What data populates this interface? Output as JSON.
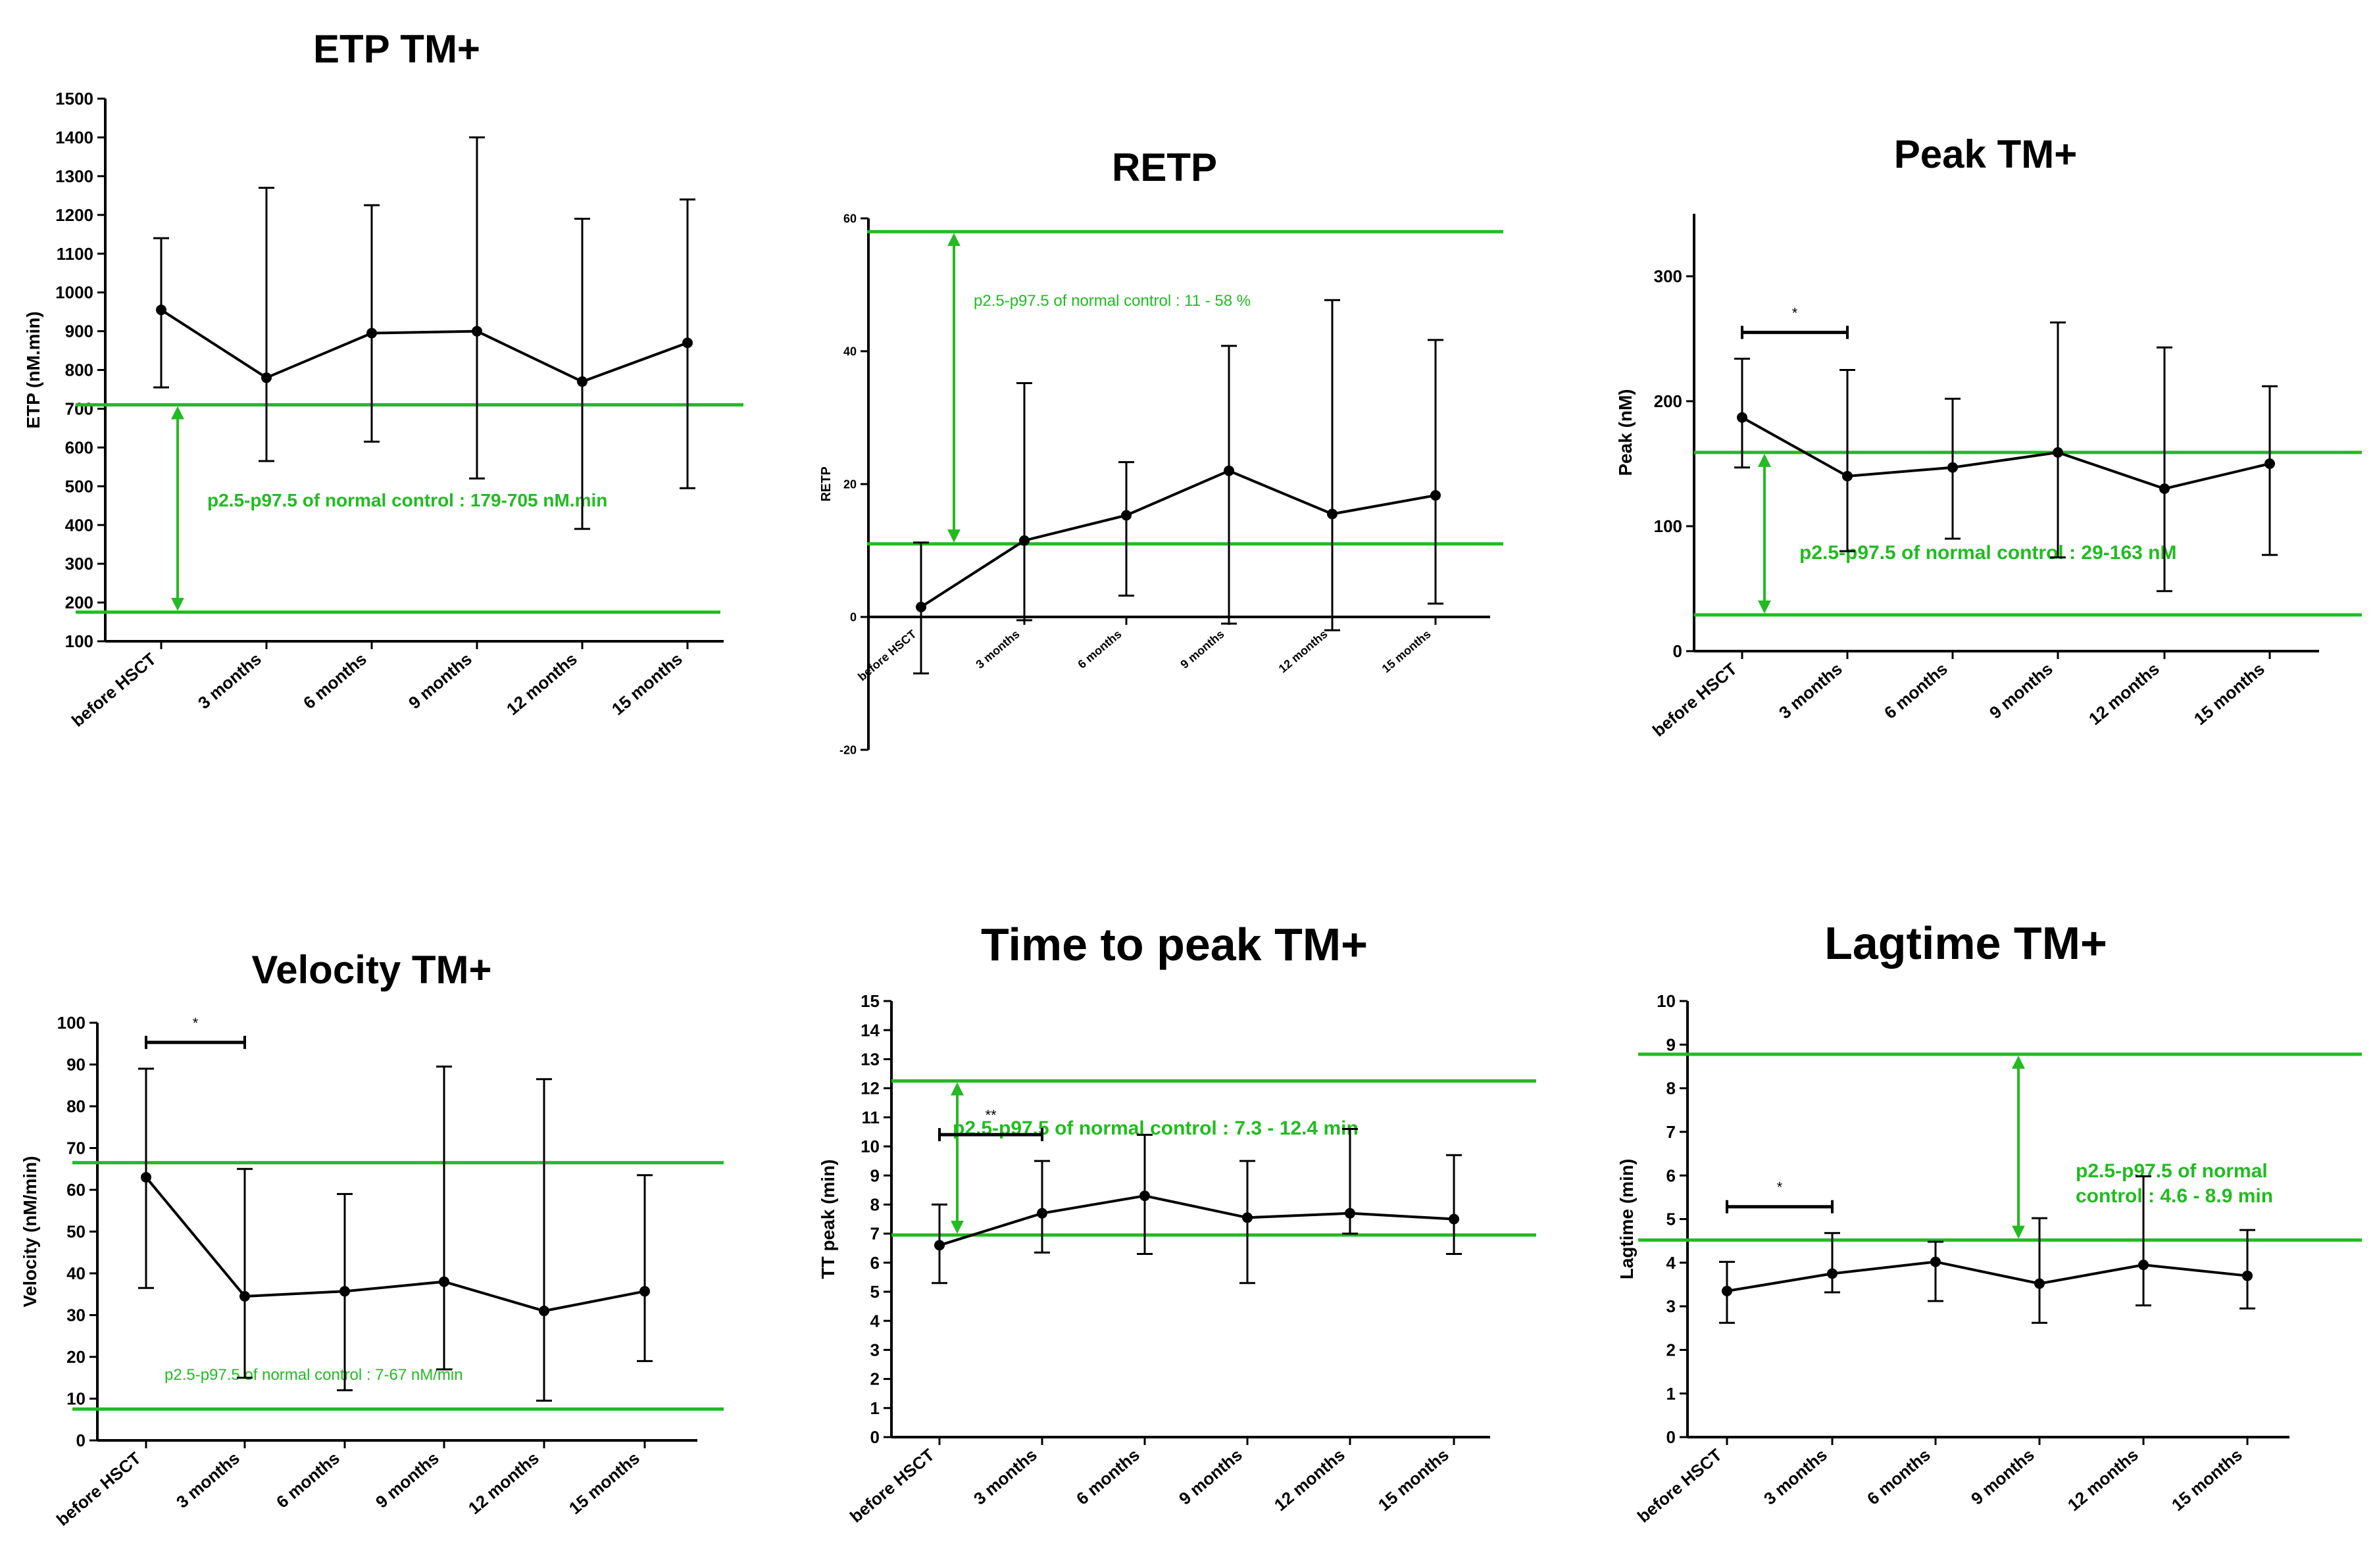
{
  "colors": {
    "axis": "#000000",
    "series": "#000000",
    "reference": "#22bb22"
  },
  "chart_data": [
    {
      "type": "line",
      "title": "ETP TM+",
      "xlabel": "",
      "ylabel": "ETP (nM.min)",
      "ylim": [
        100,
        1500
      ],
      "yticks": [
        100,
        200,
        300,
        400,
        500,
        600,
        700,
        800,
        900,
        1000,
        1100,
        1200,
        1300,
        1400,
        1500
      ],
      "categories": [
        "before HSCT",
        "3 months",
        "6 months",
        "9 months",
        "12 months",
        "15 months"
      ],
      "values": [
        955,
        780,
        895,
        900,
        770,
        870
      ],
      "err_low": [
        755,
        565,
        615,
        520,
        390,
        495
      ],
      "err_high": [
        1140,
        1270,
        1225,
        1400,
        1190,
        1240
      ],
      "reference": {
        "low": 175,
        "high": 710,
        "label": "p2.5-p97.5 of normal control : 179-705 nM.min"
      },
      "significance": null
    },
    {
      "type": "line",
      "title": "RETP",
      "xlabel": "",
      "ylabel": "RETP",
      "ylim": [
        -20,
        60
      ],
      "yticks": [
        -20,
        0,
        20,
        40,
        60
      ],
      "categories": [
        "before HSCT",
        "3 months",
        "6 months",
        "9 months",
        "12 months",
        "15 months"
      ],
      "values": [
        1.5,
        11.5,
        15.3,
        22,
        15.5,
        18.3
      ],
      "err_low": [
        -8.5,
        -0.5,
        3.2,
        -1,
        -2,
        2
      ],
      "err_high": [
        11.2,
        35.2,
        23.3,
        40.8,
        47.7,
        41.7
      ],
      "reference": {
        "low": 11,
        "high": 58,
        "label": "p2.5-p97.5 of normal control : 11 - 58 %"
      },
      "significance": null
    },
    {
      "type": "line",
      "title": "Peak TM+",
      "xlabel": "",
      "ylabel": "Peak (nM)",
      "ylim": [
        0,
        350
      ],
      "yticks": [
        0,
        100,
        200,
        300
      ],
      "categories": [
        "before HSCT",
        "3 months",
        "6 months",
        "9 months",
        "12 months",
        "15 months"
      ],
      "values": [
        187,
        140,
        147,
        159,
        130,
        150
      ],
      "err_low": [
        147,
        80,
        90,
        75,
        48,
        77
      ],
      "err_high": [
        234,
        225,
        202,
        263,
        243,
        212
      ],
      "reference": {
        "low": 29,
        "high": 159,
        "label": "p2.5-p97.5 of normal control  : 29-163 nM"
      },
      "significance": {
        "from": 0,
        "to": 1,
        "marker": "*"
      }
    },
    {
      "type": "line",
      "title": "Velocity TM+",
      "xlabel": "",
      "ylabel": "Velocity (nM/min)",
      "ylim": [
        0,
        100
      ],
      "yticks": [
        0,
        10,
        20,
        30,
        40,
        50,
        60,
        70,
        80,
        90,
        100
      ],
      "categories": [
        "before HSCT",
        "3 months",
        "6 months",
        "9 months",
        "12 months",
        "15 months"
      ],
      "values": [
        63,
        34.5,
        35.7,
        38,
        31,
        35.7
      ],
      "err_low": [
        36.5,
        15,
        12,
        17,
        9.5,
        19
      ],
      "err_high": [
        89,
        65,
        59,
        89.5,
        86.5,
        63.5
      ],
      "reference": {
        "low": 7.5,
        "high": 66.5,
        "label": "p2.5-p97.5 of normal control : 7-67 nM/min"
      },
      "significance": {
        "from": 0,
        "to": 1,
        "marker": "*"
      }
    },
    {
      "type": "line",
      "title": "Time to peak TM+",
      "xlabel": "",
      "ylabel": "TT peak  (min)",
      "ylim": [
        0,
        15
      ],
      "yticks": [
        0,
        1,
        2,
        3,
        4,
        5,
        6,
        7,
        8,
        9,
        10,
        11,
        12,
        13,
        14,
        15
      ],
      "categories": [
        "before HSCT",
        "3 months",
        "6 months",
        "9 months",
        "12 months",
        "15 months"
      ],
      "values": [
        6.6,
        7.7,
        8.3,
        7.55,
        7.7,
        7.5
      ],
      "err_low": [
        5.3,
        6.35,
        6.3,
        5.3,
        7,
        6.3
      ],
      "err_high": [
        8,
        9.5,
        10.4,
        9.5,
        10.6,
        9.7
      ],
      "reference": {
        "low": 6.95,
        "high": 12.25,
        "label": "p2.5-p97.5 of normal control : 7.3 - 12.4 min"
      },
      "significance": {
        "from": 0,
        "to": 1,
        "marker": "**"
      }
    },
    {
      "type": "line",
      "title": "Lagtime TM+",
      "xlabel": "",
      "ylabel": "Lagtime (min)",
      "ylim": [
        0,
        10
      ],
      "yticks": [
        0,
        1,
        2,
        3,
        4,
        5,
        6,
        7,
        8,
        9,
        10
      ],
      "categories": [
        "before HSCT",
        "3 months",
        "6 months",
        "9 months",
        "12 months",
        "15 months"
      ],
      "values": [
        3.35,
        3.75,
        4.02,
        3.52,
        3.95,
        3.7
      ],
      "err_low": [
        2.62,
        3.32,
        3.12,
        2.62,
        3.02,
        2.95
      ],
      "err_high": [
        4.02,
        4.68,
        4.48,
        5.02,
        5.98,
        4.75
      ],
      "reference": {
        "low": 4.52,
        "high": 8.78,
        "label_lines": [
          "p2.5-p97.5 of normal",
          "control : 4.6 - 8.9 min"
        ]
      },
      "significance": {
        "from": 0,
        "to": 1,
        "marker": "*"
      }
    }
  ]
}
